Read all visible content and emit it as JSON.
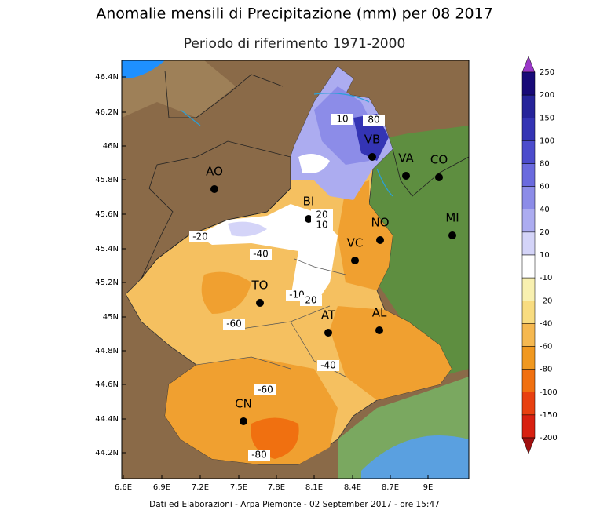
{
  "title": "Anomalie mensili di Precipitazione (mm) per 08 2017",
  "subtitle": "Periodo di riferimento 1971-2000",
  "map": {
    "lat_ticks": [
      "46.4N",
      "46.2N",
      "46N",
      "45.8N",
      "45.6N",
      "45.4N",
      "45.2N",
      "45N",
      "44.8N",
      "44.6N",
      "44.4N",
      "44.2N"
    ],
    "lon_ticks": [
      "6.6E",
      "6.9E",
      "7.2E",
      "7.5E",
      "7.8E",
      "8.1E",
      "8.4E",
      "8.7E",
      "9E"
    ],
    "cities": [
      "VB",
      "VA",
      "CO",
      "AO",
      "BI",
      "NO",
      "MI",
      "VC",
      "TO",
      "AT",
      "AL",
      "CN"
    ],
    "contour_labels": [
      "10",
      "80",
      "20",
      "10",
      "-20",
      "-40",
      "-10",
      "20",
      "-60",
      "-40",
      "-60",
      "-80"
    ]
  },
  "colorbar": {
    "labels": [
      "250",
      "200",
      "150",
      "100",
      "80",
      "60",
      "40",
      "20",
      "10",
      "-10",
      "-20",
      "-40",
      "-60",
      "-80",
      "-100",
      "-150",
      "-200"
    ],
    "colors": [
      "#9a38c8",
      "#180a78",
      "#26249a",
      "#3434b4",
      "#4c4ccc",
      "#6a6ade",
      "#8c8ce8",
      "#acacf0",
      "#d4d4f8",
      "#ffffff",
      "#f8f0b0",
      "#f8dc80",
      "#f5b850",
      "#f09820",
      "#f07010",
      "#e84010",
      "#d82010",
      "#a01010"
    ]
  },
  "footer": "Dati ed Elaborazioni - Arpa Piemonte - 02 September 2017 - ore 15:47"
}
